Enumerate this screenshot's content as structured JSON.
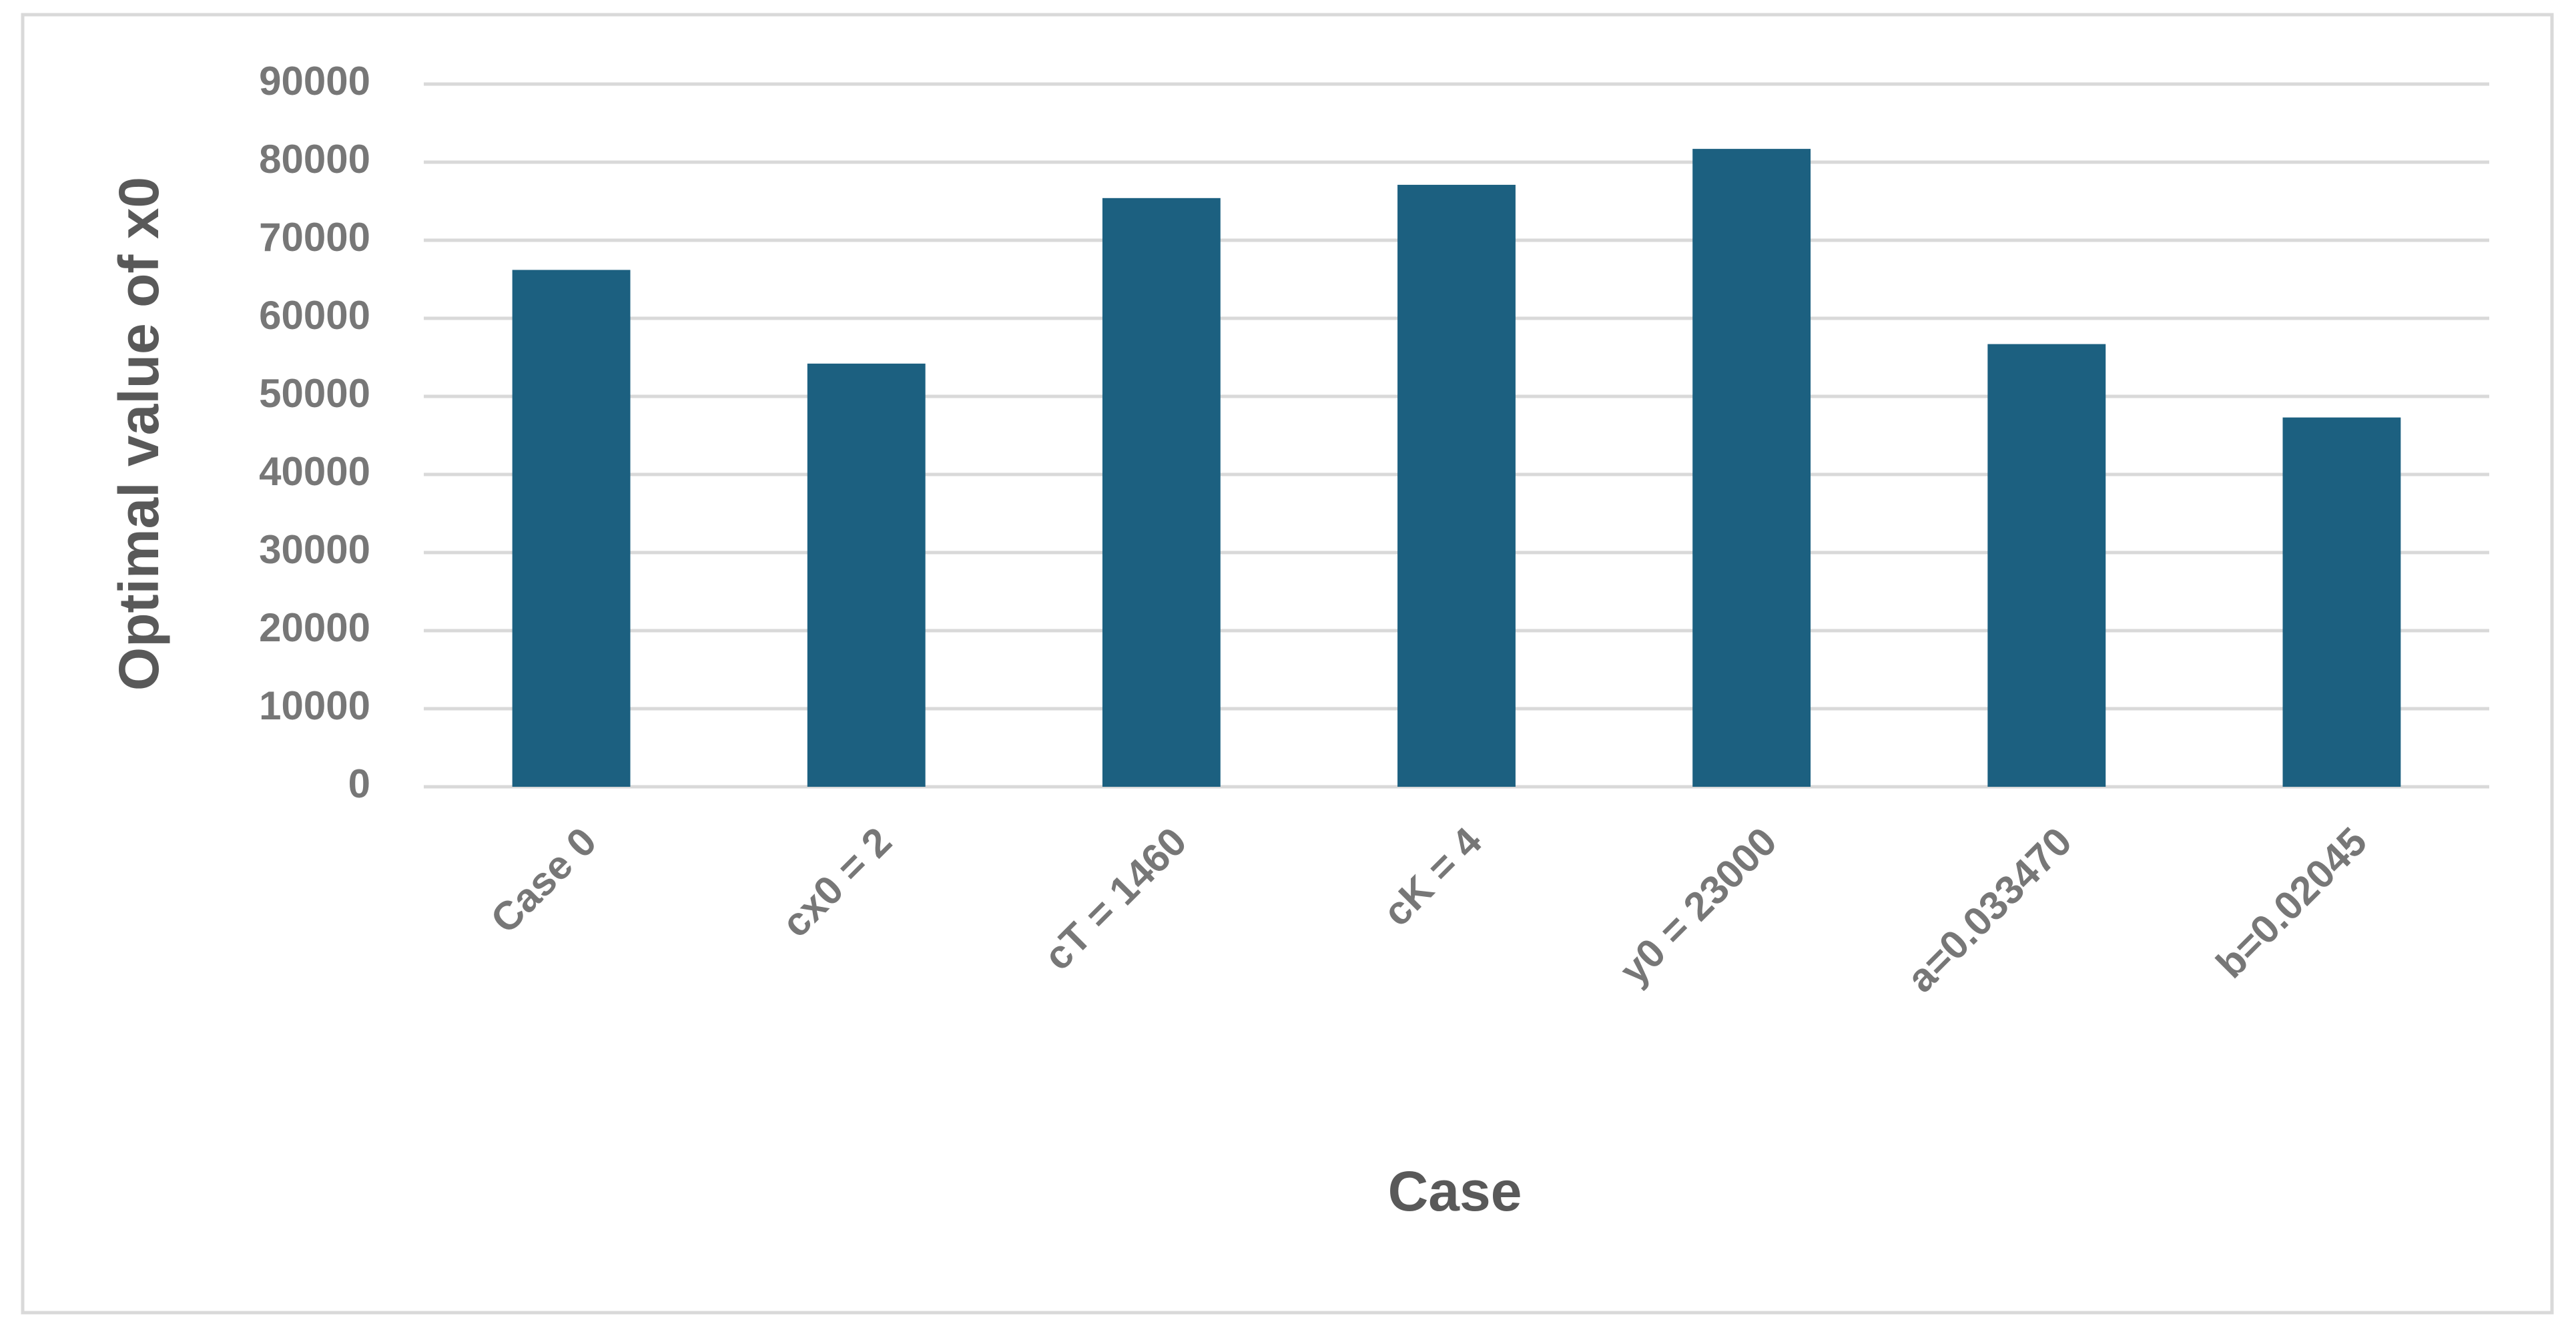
{
  "chart_data": {
    "type": "bar",
    "x_label": "Case",
    "y_label": "Optimal value of x0",
    "categories": [
      "Case 0",
      "cx0 = 2",
      "cT = 1460",
      "cK = 4",
      "y0 = 23000",
      "a=0.033470",
      "b=0.02045"
    ],
    "values": [
      66200,
      54200,
      75400,
      77100,
      81700,
      56700,
      47300
    ],
    "color": "#1c6080",
    "ylim": [
      0,
      90000
    ],
    "yticks": [
      0,
      10000,
      20000,
      30000,
      40000,
      50000,
      60000,
      70000,
      80000,
      90000
    ],
    "grid": true
  }
}
